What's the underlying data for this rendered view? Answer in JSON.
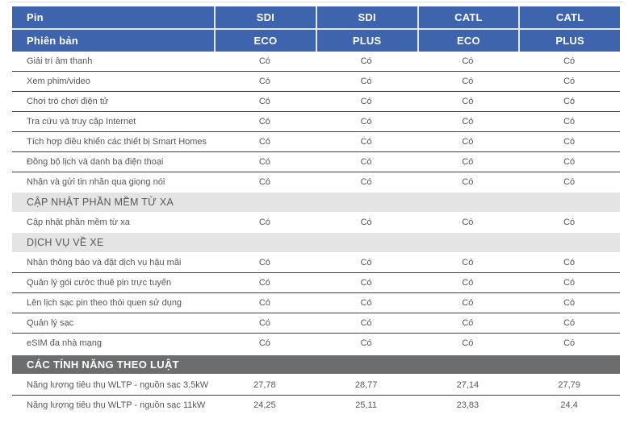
{
  "colors": {
    "header_blue": "#3d64ad",
    "header_text": "#ffffff",
    "row_text": "#55565a",
    "row_divider": "#3d3d3d",
    "section_light_bg": "#e4e4e4",
    "section_light_text": "#57585a",
    "section_dark_bg": "#6c6d6f",
    "section_dark_text": "#ffffff",
    "top_line": "#dcdcdc"
  },
  "table": {
    "header": {
      "pin_label": "Pin",
      "pin_values": [
        "SDI",
        "SDI",
        "CATL",
        "CATL"
      ],
      "version_label": "Phiên bản",
      "version_values": [
        "ECO",
        "PLUS",
        "ECO",
        "PLUS"
      ]
    },
    "sections": {
      "software_update": "CẬP NHẬT PHẦN MỀM TỪ XA",
      "vehicle_services": "DỊCH VỤ VỀ XE",
      "legal_features": "CÁC TÍNH NĂNG THEO LUẬT"
    },
    "rows": [
      {
        "feature": "Giải trí âm thanh",
        "values": [
          "Có",
          "Có",
          "Có",
          "Có"
        ]
      },
      {
        "feature": "Xem phim/video",
        "values": [
          "Có",
          "Có",
          "Có",
          "Có"
        ]
      },
      {
        "feature": "Chơi trò chơi điện tử",
        "values": [
          "Có",
          "Có",
          "Có",
          "Có"
        ]
      },
      {
        "feature": "Tra cứu và truy cập Internet",
        "values": [
          "Có",
          "Có",
          "Có",
          "Có"
        ]
      },
      {
        "feature": "Tích hợp điều khiển các thiết bị Smart Homes",
        "values": [
          "Có",
          "Có",
          "Có",
          "Có"
        ]
      },
      {
        "feature": "Đồng bộ lịch và danh bạ điện thoại",
        "values": [
          "Có",
          "Có",
          "Có",
          "Có"
        ]
      },
      {
        "feature": "Nhận và gửi tin nhắn qua giọng nói",
        "values": [
          "Có",
          "Có",
          "Có",
          "Có"
        ]
      },
      {
        "feature": "Cập nhật phần mềm từ xa",
        "values": [
          "Có",
          "Có",
          "Có",
          "Có"
        ]
      },
      {
        "feature": "Nhận thông báo và đặt dịch vụ hậu mãi",
        "values": [
          "Có",
          "Có",
          "Có",
          "Có"
        ]
      },
      {
        "feature": "Quản lý gói cước thuê pin trực tuyến",
        "values": [
          "Có",
          "Có",
          "Có",
          "Có"
        ]
      },
      {
        "feature": "Lên lịch sạc pin theo thói quen sử dụng",
        "values": [
          "Có",
          "Có",
          "Có",
          "Có"
        ]
      },
      {
        "feature": "Quản lý sạc",
        "values": [
          "Có",
          "Có",
          "Có",
          "Có"
        ]
      },
      {
        "feature": "eSIM đa nhà mạng",
        "values": [
          "Có",
          "Có",
          "Có",
          "Có"
        ]
      },
      {
        "feature": "Năng lượng tiêu thụ WLTP - nguồn sạc 3.5kW",
        "values": [
          "27,78",
          "28,77",
          "27,14",
          "27,79"
        ]
      },
      {
        "feature": "Năng lượng tiêu thụ WLTP - nguồn sạc 11kW",
        "values": [
          "24,25",
          "25,11",
          "23,83",
          "24,4"
        ]
      }
    ]
  }
}
